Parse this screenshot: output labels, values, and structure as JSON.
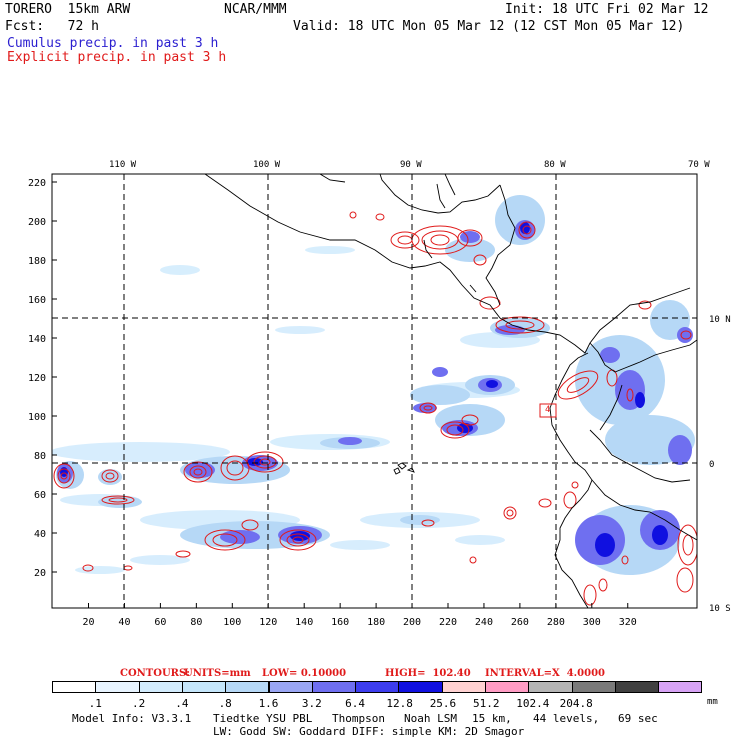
{
  "header": {
    "model": "TORERO  15km ARW",
    "org": "NCAR/MMM",
    "init": "Init: 18 UTC Fri 02 Mar 12",
    "fcst": "Fcst:   72 h",
    "valid": "Valid: 18 UTC Mon 05 Mar 12 (12 CST Mon 05 Mar 12)",
    "line_cumulus": "Cumulus precip. in past 3 h",
    "line_explicit": "Explicit precip. in past 3 h"
  },
  "map": {
    "top_lon_labels": [
      "110 W",
      "100 W",
      "90 W",
      "80 W",
      "70 W"
    ],
    "right_lat_labels": [
      "10 N",
      "0",
      "10 S"
    ],
    "y_ticks": [
      "220",
      "200",
      "180",
      "160",
      "140",
      "120",
      "100",
      "80",
      "60",
      "40",
      "20"
    ],
    "x_ticks": [
      "20",
      "40",
      "60",
      "80",
      "100",
      "120",
      "140",
      "160",
      "180",
      "200",
      "220",
      "240",
      "260",
      "280",
      "300",
      "320"
    ],
    "max_label": "4"
  },
  "contours": {
    "label": "CONTOURS:",
    "units": "UNITS=mm",
    "low": "LOW= 0.10000",
    "high": "HIGH=  102.40",
    "interval": "INTERVAL=X  4.0000"
  },
  "colorbar": {
    "colors": [
      "#ffffff",
      "#e8f4ff",
      "#d3ecfd",
      "#c5e6fb",
      "#b6d8f6",
      "#9aa6f3",
      "#6f6ff0",
      "#3d3dee",
      "#1010e0",
      "#ffd2d2",
      "#ff9cc4",
      "#b4b4b4",
      "#7a7a7a",
      "#404040",
      "#d7a3f5"
    ],
    "labels": [
      ".1",
      ".2",
      ".4",
      ".8",
      "1.6",
      "3.2",
      "6.4",
      "12.8",
      "25.6",
      "51.2",
      "102.4",
      "204.8"
    ],
    "units": "mm"
  },
  "footer": {
    "model_info": "Model Info: V3.3.1",
    "pbl": "Tiedtke YSU PBL",
    "micro": "Thompson",
    "lsm": "Noah LSM",
    "res": "15 km,",
    "levels": "44 levels,",
    "dt": "69 sec",
    "line2": "LW: Godd SW: Goddard DIFF: simple KM: 2D Smagor"
  }
}
